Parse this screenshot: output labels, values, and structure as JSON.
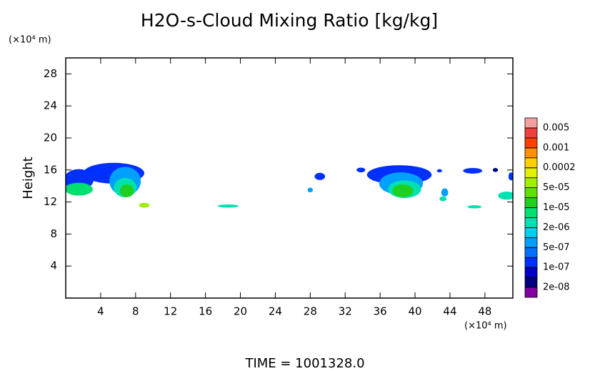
{
  "chart_data": {
    "type": "filled-contour",
    "title": "H2O-s-Cloud Mixing Ratio [kg/kg]",
    "y_label": "Height",
    "y_unit": "(×10⁴ m)",
    "x_unit": "(×10⁴ m)",
    "footer": "TIME = 1001328.0",
    "xlim": [
      0,
      51.2
    ],
    "ylim": [
      0,
      30
    ],
    "xticks": [
      4,
      8,
      12,
      16,
      20,
      24,
      28,
      32,
      36,
      40,
      44,
      48
    ],
    "yticks": [
      4,
      8,
      12,
      16,
      20,
      24,
      28
    ],
    "colorbar": {
      "colors": [
        "#8000a0",
        "#000080",
        "#0000c8",
        "#0030ff",
        "#0070ff",
        "#00a0ff",
        "#00d0f0",
        "#00e0b0",
        "#00e070",
        "#20d020",
        "#60e000",
        "#a0f000",
        "#e0f000",
        "#ffd000",
        "#ff9000",
        "#ff4000",
        "#f04040",
        "#f4a0a0"
      ],
      "levels": [
        {
          "value": 2e-08,
          "label": "2e-08"
        },
        {
          "value": 1e-07,
          "label": "1e-07"
        },
        {
          "value": 5e-07,
          "label": "5e-07"
        },
        {
          "value": 2e-06,
          "label": "2e-06"
        },
        {
          "value": 1e-05,
          "label": "1e-05"
        },
        {
          "value": 5e-05,
          "label": "5e-05"
        },
        0.0002,
        0.001,
        0.005
      ]
    },
    "patches": [
      {
        "x": 5.5,
        "y": 15.6,
        "w": 7,
        "h": 2.6,
        "value": 1e-07
      },
      {
        "x": 1.5,
        "y": 14.8,
        "w": 3.4,
        "h": 2.6,
        "value": 1e-07
      },
      {
        "x": 6.8,
        "y": 14.6,
        "w": 3.6,
        "h": 3.6,
        "value": 5e-07
      },
      {
        "x": 6.8,
        "y": 13.8,
        "w": 2.6,
        "h": 2.4,
        "value": 2e-06
      },
      {
        "x": 1.5,
        "y": 13.6,
        "w": 3.2,
        "h": 1.6,
        "value": 5e-06
      },
      {
        "x": 7.0,
        "y": 13.4,
        "w": 1.6,
        "h": 1.6,
        "value": 1e-05
      },
      {
        "x": 9.0,
        "y": 11.6,
        "w": 1.2,
        "h": 0.6,
        "value": 5e-05
      },
      {
        "x": 18.6,
        "y": 11.5,
        "w": 2.4,
        "h": 0.4,
        "value": 2e-06
      },
      {
        "x": 29.1,
        "y": 15.2,
        "w": 1.2,
        "h": 0.9,
        "value": 1e-07
      },
      {
        "x": 28.0,
        "y": 13.5,
        "w": 0.6,
        "h": 0.6,
        "value": 5e-07
      },
      {
        "x": 33.8,
        "y": 16,
        "w": 1,
        "h": 0.6,
        "value": 1e-07
      },
      {
        "x": 38.2,
        "y": 15.4,
        "w": 7.4,
        "h": 2.4,
        "value": 1e-07
      },
      {
        "x": 38.4,
        "y": 14.3,
        "w": 5,
        "h": 2.8,
        "value": 5e-07
      },
      {
        "x": 38.8,
        "y": 13.6,
        "w": 3.8,
        "h": 2.2,
        "value": 2e-06
      },
      {
        "x": 38.6,
        "y": 13.4,
        "w": 2.4,
        "h": 1.6,
        "value": 1e-05
      },
      {
        "x": 42.8,
        "y": 15.9,
        "w": 0.6,
        "h": 0.4,
        "value": 1e-07
      },
      {
        "x": 43.4,
        "y": 13.2,
        "w": 0.8,
        "h": 1,
        "value": 5e-07
      },
      {
        "x": 43.2,
        "y": 12.4,
        "w": 0.8,
        "h": 0.6,
        "value": 2e-06
      },
      {
        "x": 46.6,
        "y": 15.9,
        "w": 2.2,
        "h": 0.7,
        "value": 1e-07
      },
      {
        "x": 49.2,
        "y": 16.0,
        "w": 0.6,
        "h": 0.5,
        "value": 2e-08
      },
      {
        "x": 46.8,
        "y": 11.4,
        "w": 1.6,
        "h": 0.4,
        "value": 2e-06
      },
      {
        "x": 50.5,
        "y": 12.8,
        "w": 2,
        "h": 1,
        "value": 2e-06
      },
      {
        "x": 51.0,
        "y": 15.2,
        "w": 0.6,
        "h": 1,
        "value": 1e-07
      }
    ]
  }
}
